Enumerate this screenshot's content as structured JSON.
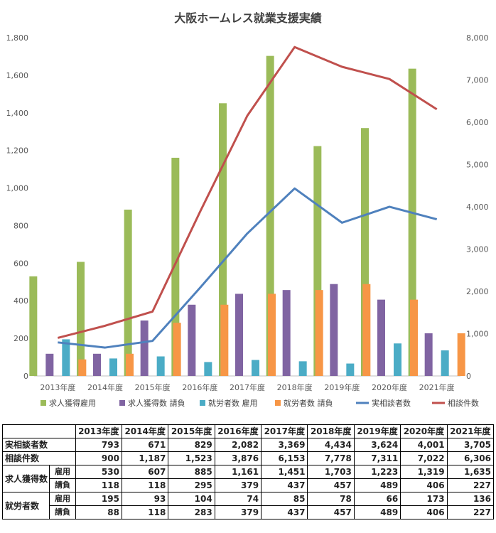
{
  "chart_data": {
    "type": "bar",
    "title": "大阪ホームレス就業支援実績",
    "categories": [
      "2013年度",
      "2014年度",
      "2015年度",
      "2016年度",
      "2017年度",
      "2018年度",
      "2019年度",
      "2020年度",
      "2021年度"
    ],
    "y_left": {
      "ylim": [
        0,
        1800
      ],
      "ticks": [
        "0",
        "200",
        "400",
        "600",
        "800",
        "1,000",
        "1,200",
        "1,400",
        "1,600",
        "1,800"
      ]
    },
    "y_right": {
      "ylim": [
        0,
        8000
      ],
      "ticks": [
        "0",
        "1,000",
        "2,000",
        "3,000",
        "4,000",
        "5,000",
        "6,000",
        "7,000",
        "8,000"
      ]
    },
    "series": [
      {
        "name": "求人獲得雇用",
        "kind": "bar",
        "axis": "left",
        "color": "#9bbb59",
        "values": [
          530,
          607,
          885,
          1161,
          1451,
          1703,
          1223,
          1319,
          1635
        ]
      },
      {
        "name": "求人獲得数 請負",
        "kind": "bar",
        "axis": "left",
        "color": "#8064a2",
        "values": [
          118,
          118,
          295,
          379,
          437,
          457,
          489,
          406,
          227
        ]
      },
      {
        "name": "就労者数 雇用",
        "kind": "bar",
        "axis": "left",
        "color": "#4bacc6",
        "values": [
          195,
          93,
          104,
          74,
          85,
          78,
          66,
          173,
          136
        ]
      },
      {
        "name": "就労者数 請負",
        "kind": "bar",
        "axis": "left",
        "color": "#f79646",
        "values": [
          88,
          118,
          283,
          379,
          437,
          457,
          489,
          406,
          227
        ]
      },
      {
        "name": "実相談者数",
        "kind": "line",
        "axis": "right",
        "color": "#4f81bd",
        "values": [
          793,
          671,
          829,
          2082,
          3369,
          4434,
          3624,
          4001,
          3705
        ]
      },
      {
        "name": "相談件数",
        "kind": "line",
        "axis": "right",
        "color": "#c0504d",
        "values": [
          900,
          1187,
          1523,
          3876,
          6153,
          7778,
          7311,
          7022,
          6306
        ]
      }
    ],
    "grid": false,
    "legend_position": "bottom"
  },
  "table": {
    "headers": [
      "2013年度",
      "2014年度",
      "2015年度",
      "2016年度",
      "2017年度",
      "2018年度",
      "2019年度",
      "2020年度",
      "2021年度"
    ],
    "rows": [
      {
        "label": "実相談者数",
        "values": [
          "793",
          "671",
          "829",
          "2,082",
          "3,369",
          "4,434",
          "3,624",
          "4,001",
          "3,705"
        ]
      },
      {
        "label": "相談件数",
        "values": [
          "900",
          "1,187",
          "1,523",
          "3,876",
          "6,153",
          "7,778",
          "7,311",
          "7,022",
          "6,306"
        ]
      },
      {
        "group": "求人獲得数",
        "sub": "雇用",
        "values": [
          "530",
          "607",
          "885",
          "1,161",
          "1,451",
          "1,703",
          "1,223",
          "1,319",
          "1,635"
        ]
      },
      {
        "sub": "請負",
        "values": [
          "118",
          "118",
          "295",
          "379",
          "437",
          "457",
          "489",
          "406",
          "227"
        ]
      },
      {
        "group": "就労者数",
        "sub": "雇用",
        "values": [
          "195",
          "93",
          "104",
          "74",
          "85",
          "78",
          "66",
          "173",
          "136"
        ]
      },
      {
        "sub": "請負",
        "values": [
          "88",
          "118",
          "283",
          "379",
          "437",
          "457",
          "489",
          "406",
          "227"
        ]
      }
    ]
  }
}
